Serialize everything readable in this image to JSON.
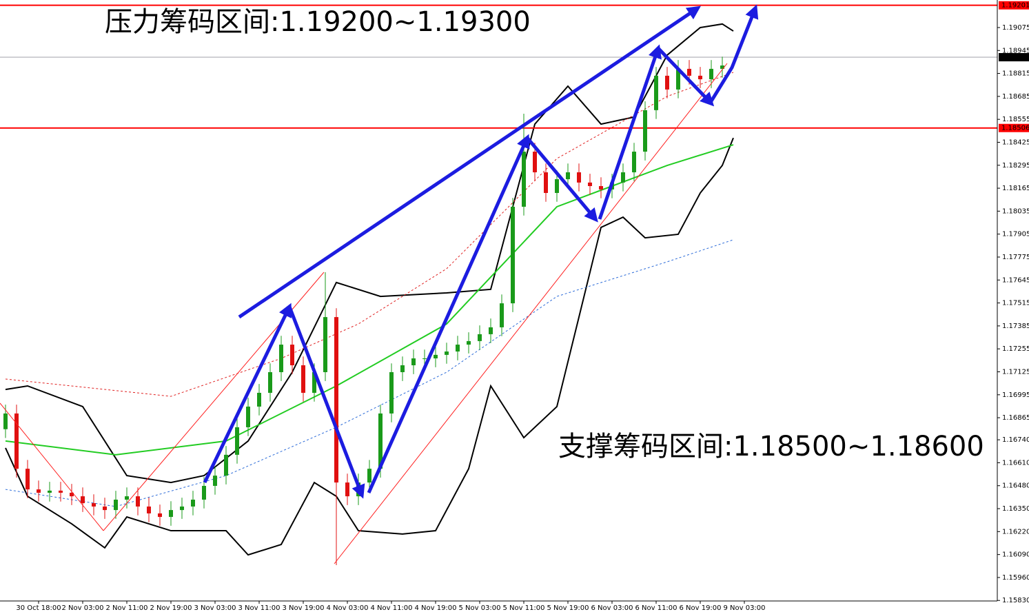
{
  "chart_data": {
    "type": "candlestick",
    "annotations": [
      "压力筹码区间:1.19200~1.19300",
      "支撑筹码区间:1.18500~1.18600"
    ],
    "categories": [
      null,
      null,
      null,
      "30 Oct 18:00",
      null,
      null,
      null,
      "2 Nov 03:00",
      null,
      null,
      null,
      "2 Nov 11:00",
      null,
      null,
      null,
      "2 Nov 19:00",
      null,
      null,
      null,
      "3 Nov 03:00",
      null,
      null,
      null,
      "3 Nov 11:00",
      null,
      null,
      null,
      "3 Nov 19:00",
      null,
      null,
      null,
      "4 Nov 03:00",
      null,
      null,
      null,
      "4 Nov 11:00",
      null,
      null,
      null,
      "4 Nov 19:00",
      null,
      null,
      null,
      "5 Nov 03:00",
      null,
      null,
      null,
      "5 Nov 11:00",
      null,
      null,
      null,
      "5 Nov 19:00",
      null,
      null,
      null,
      "6 Nov 03:00",
      null,
      null,
      null,
      "6 Nov 11:00",
      null,
      null,
      null,
      "6 Nov 19:00",
      null,
      null,
      null,
      "9 Nov 03:00"
    ],
    "open": [
      1.168,
      1.16889,
      1.16576,
      1.16459,
      1.1644,
      1.16452,
      1.1644,
      1.1642,
      1.16381,
      1.16362,
      1.16342,
      1.16401,
      1.1642,
      1.16362,
      1.16323,
      1.16303,
      1.16342,
      1.16362,
      1.16401,
      1.16479,
      1.16537,
      1.16655,
      1.16811,
      1.16928,
      1.17006,
      1.17123,
      1.17279,
      1.17162,
      1.17006,
      1.17123,
      1.17435,
      1.16498,
      1.1642,
      1.16498,
      1.16576,
      1.16889,
      1.17123,
      1.17162,
      1.17201,
      1.17201,
      1.17221,
      1.1724,
      1.17279,
      1.17299,
      1.17338,
      1.17377,
      1.17513,
      1.1806,
      1.18372,
      1.18255,
      1.18138,
      1.18216,
      1.18255,
      1.18197,
      1.18177,
      1.18158,
      1.18197,
      1.18255,
      1.18372,
      1.18607,
      1.18802,
      1.18724,
      1.18841,
      1.18802,
      1.18782,
      1.18841,
      null,
      null
    ],
    "high": [
      1.16939,
      1.16939,
      1.16626,
      1.16509,
      1.16502,
      1.16502,
      1.1649,
      1.1647,
      1.16431,
      1.16412,
      1.16451,
      1.1647,
      1.1647,
      1.16412,
      1.16373,
      1.16392,
      1.16412,
      1.16451,
      1.16529,
      1.16587,
      1.16705,
      1.16861,
      1.16978,
      1.17056,
      1.17173,
      1.17329,
      1.17329,
      1.17212,
      1.17173,
      1.17689,
      1.17485,
      1.16548,
      1.16548,
      1.16626,
      1.16939,
      1.17173,
      1.17212,
      1.17251,
      1.17251,
      1.17271,
      1.1729,
      1.17329,
      1.17349,
      1.17388,
      1.17427,
      1.17563,
      1.1811,
      1.18587,
      1.18422,
      1.18305,
      1.18266,
      1.18305,
      1.18305,
      1.18247,
      1.18227,
      1.18247,
      1.18305,
      1.18422,
      1.18657,
      1.18852,
      1.18852,
      1.18891,
      1.18891,
      1.18852,
      1.18891,
      1.1891,
      null,
      null
    ],
    "low": [
      1.1675,
      1.16526,
      1.16409,
      1.1639,
      1.1639,
      1.1639,
      1.1637,
      1.16331,
      1.16312,
      1.16292,
      1.16292,
      1.16351,
      1.16312,
      1.16273,
      1.16253,
      1.16253,
      1.16292,
      1.16312,
      1.16351,
      1.16429,
      1.16487,
      1.16605,
      1.16761,
      1.16878,
      1.16956,
      1.17073,
      1.17112,
      1.16956,
      1.16956,
      1.17073,
      1.1603,
      1.1637,
      1.1637,
      1.16448,
      1.16526,
      1.16839,
      1.17073,
      1.17112,
      1.17151,
      1.17151,
      1.17171,
      1.1719,
      1.17229,
      1.17249,
      1.17288,
      1.17327,
      1.17463,
      1.1801,
      1.18205,
      1.18088,
      1.18088,
      1.18166,
      1.18147,
      1.18127,
      1.18108,
      1.18108,
      1.18147,
      1.18205,
      1.18322,
      1.18557,
      1.18674,
      1.18674,
      1.18752,
      1.18732,
      1.18732,
      1.18791,
      null,
      null
    ],
    "close": [
      1.16889,
      1.16576,
      1.16459,
      1.1644,
      1.16452,
      1.1644,
      1.1642,
      1.16381,
      1.16362,
      1.16342,
      1.16401,
      1.1642,
      1.16362,
      1.16323,
      1.16303,
      1.16342,
      1.16362,
      1.16401,
      1.16479,
      1.16537,
      1.16655,
      1.16811,
      1.16928,
      1.17006,
      1.17123,
      1.17279,
      1.17162,
      1.17006,
      1.17123,
      1.17435,
      1.16498,
      1.1642,
      1.16498,
      1.16576,
      1.16889,
      1.17123,
      1.17162,
      1.17201,
      1.17201,
      1.17221,
      1.1724,
      1.17279,
      1.17299,
      1.17338,
      1.17377,
      1.17513,
      1.1806,
      1.18372,
      1.18255,
      1.18138,
      1.18216,
      1.18255,
      1.18197,
      1.18177,
      1.18158,
      1.18197,
      1.18255,
      1.18372,
      1.18607,
      1.18802,
      1.18724,
      1.18841,
      1.18802,
      1.18782,
      1.18841,
      1.1886,
      null,
      null
    ],
    "up_color": "#1a9a1a",
    "down_color": "#e01010",
    "overlays": [
      {
        "color": "#000000",
        "dashed": false,
        "x": [
          0,
          2,
          7,
          9,
          11,
          15,
          18,
          22,
          26,
          30,
          34,
          40,
          44,
          46,
          48,
          51,
          54,
          57,
          60,
          63,
          65,
          66
        ],
        "values": [
          1.17025,
          1.17045,
          1.16928,
          1.16733,
          1.16537,
          1.16498,
          1.16537,
          1.16733,
          1.17123,
          1.17631,
          1.17552,
          1.17572,
          1.17592,
          1.1806,
          1.18528,
          1.18743,
          1.18528,
          1.18568,
          1.18919,
          1.19075,
          1.19095,
          1.19055
        ]
      },
      {
        "color": "#000000",
        "dashed": false,
        "x": [
          0,
          2,
          6,
          9,
          11,
          15,
          20,
          22,
          25,
          28,
          30,
          32,
          36,
          39,
          42,
          44,
          47,
          50,
          52,
          54,
          56,
          58,
          61,
          63,
          65,
          66
        ],
        "values": [
          1.16694,
          1.1642,
          1.16264,
          1.16128,
          1.16303,
          1.16225,
          1.16225,
          1.16088,
          1.16147,
          1.16498,
          1.1642,
          1.16225,
          1.16206,
          1.16225,
          1.16576,
          1.17045,
          1.16752,
          1.16928,
          1.17435,
          1.17943,
          1.18001,
          1.17884,
          1.17904,
          1.18138,
          1.18294,
          1.1845
        ]
      },
      {
        "color": "#22cc22",
        "dashed": false,
        "x": [
          0,
          10,
          20,
          30,
          40,
          50,
          60,
          66
        ],
        "values": [
          1.16733,
          1.16655,
          1.16733,
          1.17045,
          1.17396,
          1.1806,
          1.18294,
          1.18411
        ]
      },
      {
        "color": "#2a6ad8",
        "dashed": true,
        "x": [
          0,
          10,
          20,
          30,
          40,
          50,
          60,
          66
        ],
        "values": [
          1.16459,
          1.16362,
          1.16537,
          1.16811,
          1.17123,
          1.17552,
          1.17748,
          1.17873
        ]
      },
      {
        "color": "#e02020",
        "dashed": true,
        "x": [
          0,
          15,
          25,
          32,
          40,
          50,
          60,
          66
        ],
        "values": [
          1.17084,
          1.16986,
          1.17201,
          1.17396,
          1.17709,
          1.18333,
          1.18685,
          1.18821
        ]
      }
    ],
    "hlines": [
      {
        "value": 1.19201,
        "color": "#ff0000"
      },
      {
        "value": 1.18506,
        "color": "#ff0000"
      },
      {
        "value": 1.18907,
        "color": "#a0a0a8"
      }
    ],
    "ylim": [
      1.15827,
      1.19231
    ],
    "yticks": [
      1.19075,
      1.18945,
      1.18815,
      1.18685,
      1.18555,
      1.18425,
      1.18295,
      1.18165,
      1.18035,
      1.17905,
      1.17775,
      1.17645,
      1.17515,
      1.17385,
      1.17255,
      1.17125,
      1.16995,
      1.16865,
      {
        "value": 1.1674,
        "label": "1.16740"
      },
      {
        "value": 1.1661,
        "label": "1.16610"
      },
      {
        "value": 1.1648,
        "label": "1.16480"
      },
      {
        "value": 1.1635,
        "label": "1.16350"
      },
      {
        "value": 1.1622,
        "label": "1.16220"
      },
      {
        "value": 1.1609,
        "label": "1.16090"
      },
      {
        "value": 1.1596,
        "label": "1.15960"
      },
      {
        "value": 1.1583,
        "label": "1.15830"
      }
    ]
  }
}
